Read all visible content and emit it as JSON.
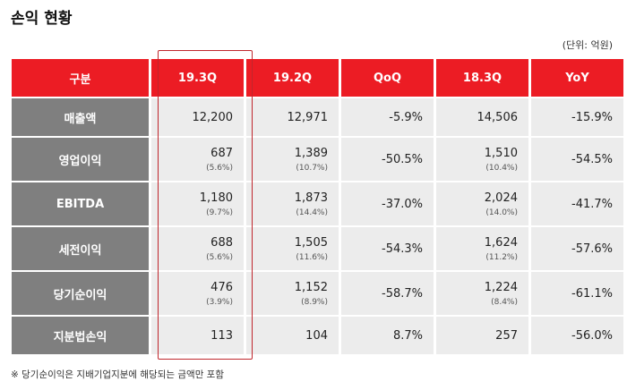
{
  "title": "손익 현황",
  "unit": "(단위: 억원)",
  "note": "※ 당기순이익은 지배기업지분에 해당되는 금액만 포함",
  "columns": [
    "구분",
    "19.3Q",
    "19.2Q",
    "QoQ",
    "18.3Q",
    "YoY"
  ],
  "rows": [
    {
      "label": "매출액",
      "q193": "12,200",
      "q193_sub": "",
      "q192": "12,971",
      "q192_sub": "",
      "qoq": "-5.9%",
      "q183": "14,506",
      "q183_sub": "",
      "yoy": "-15.9%"
    },
    {
      "label": "영업이익",
      "q193": "687",
      "q193_sub": "(5.6%)",
      "q192": "1,389",
      "q192_sub": "(10.7%)",
      "qoq": "-50.5%",
      "q183": "1,510",
      "q183_sub": "(10.4%)",
      "yoy": "-54.5%"
    },
    {
      "label": "EBITDA",
      "q193": "1,180",
      "q193_sub": "(9.7%)",
      "q192": "1,873",
      "q192_sub": "(14.4%)",
      "qoq": "-37.0%",
      "q183": "2,024",
      "q183_sub": "(14.0%)",
      "yoy": "-41.7%"
    },
    {
      "label": "세전이익",
      "q193": "688",
      "q193_sub": "(5.6%)",
      "q192": "1,505",
      "q192_sub": "(11.6%)",
      "qoq": "-54.3%",
      "q183": "1,624",
      "q183_sub": "(11.2%)",
      "yoy": "-57.6%"
    },
    {
      "label": "당기순이익",
      "q193": "476",
      "q193_sub": "(3.9%)",
      "q192": "1,152",
      "q192_sub": "(8.9%)",
      "qoq": "-58.7%",
      "q183": "1,224",
      "q183_sub": "(8.4%)",
      "yoy": "-61.1%"
    },
    {
      "label": "지분법손익",
      "q193": "113",
      "q193_sub": "",
      "q192": "104",
      "q192_sub": "",
      "qoq": "8.7%",
      "q183": "257",
      "q183_sub": "",
      "yoy": "-56.0%"
    }
  ],
  "colors": {
    "header": "#ec1c24",
    "row_header": "#7f7f7f",
    "cell": "#ececec",
    "highlight_border": "#c0272d"
  }
}
